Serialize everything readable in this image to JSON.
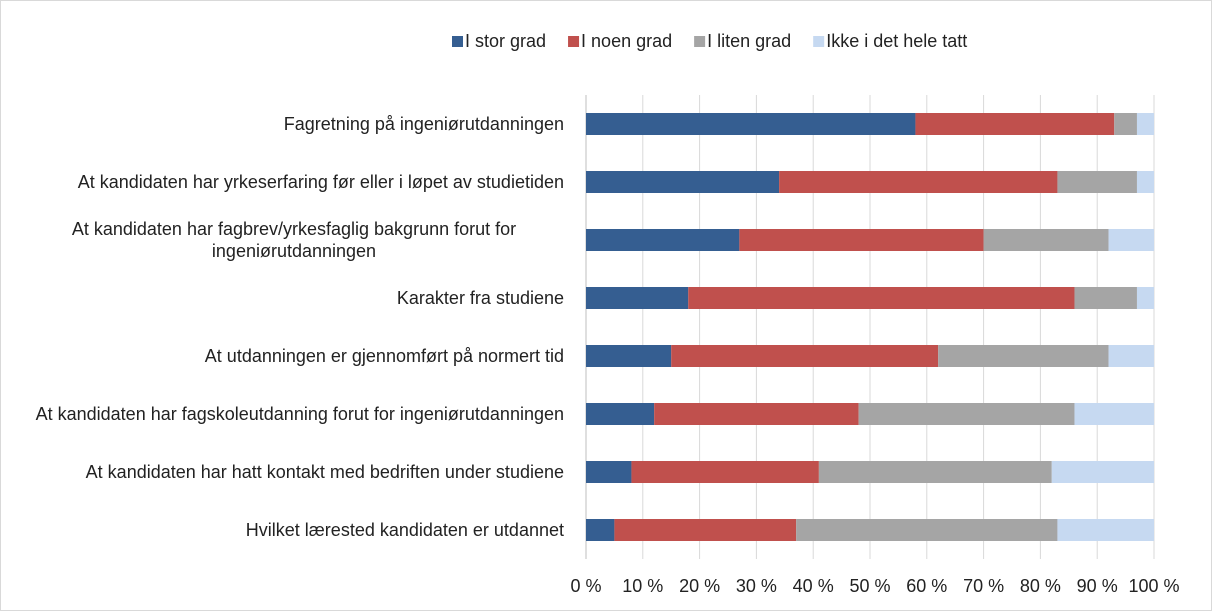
{
  "chart_data": {
    "type": "bar",
    "orientation": "horizontal",
    "stacked": true,
    "categories": [
      "Fagretning på ingeniørutdanningen",
      "At kandidaten har yrkeserfaring før eller i løpet av studietiden",
      "At kandidaten har fagbrev/yrkesfaglig bakgrunn forut for ingeniørutdanningen",
      "Karakter fra studiene",
      "At utdanningen er gjennomført på normert tid",
      "At kandidaten har fagskoleutdanning forut for ingeniørutdanningen",
      "At kandidaten har hatt kontakt med bedriften under studiene",
      "Hvilket lærested kandidaten er utdannet"
    ],
    "series": [
      {
        "name": "I stor grad",
        "color": "#355e91",
        "values": [
          58,
          34,
          27,
          18,
          15,
          12,
          8,
          5
        ]
      },
      {
        "name": "I noen grad",
        "color": "#c0504d",
        "values": [
          35,
          49,
          43,
          68,
          47,
          36,
          33,
          32
        ]
      },
      {
        "name": "I liten grad",
        "color": "#a5a5a5",
        "values": [
          4,
          14,
          22,
          11,
          30,
          38,
          41,
          46
        ]
      },
      {
        "name": "Ikke i det hele tatt",
        "color": "#c6d9f1",
        "values": [
          3,
          3,
          8,
          3,
          8,
          14,
          18,
          17
        ]
      }
    ],
    "xlim": [
      0,
      100
    ],
    "xticks": [
      {
        "value": 0,
        "label": "0 %"
      },
      {
        "value": 10,
        "label": "10 %"
      },
      {
        "value": 20,
        "label": "20 %"
      },
      {
        "value": 30,
        "label": "30 %"
      },
      {
        "value": 40,
        "label": "40 %"
      },
      {
        "value": 50,
        "label": "50 %"
      },
      {
        "value": 60,
        "label": "60 %"
      },
      {
        "value": 70,
        "label": "70 %"
      },
      {
        "value": 80,
        "label": "80 %"
      },
      {
        "value": 90,
        "label": "90 %"
      },
      {
        "value": 100,
        "label": "100 %"
      }
    ],
    "grid": true,
    "legend": "top"
  }
}
